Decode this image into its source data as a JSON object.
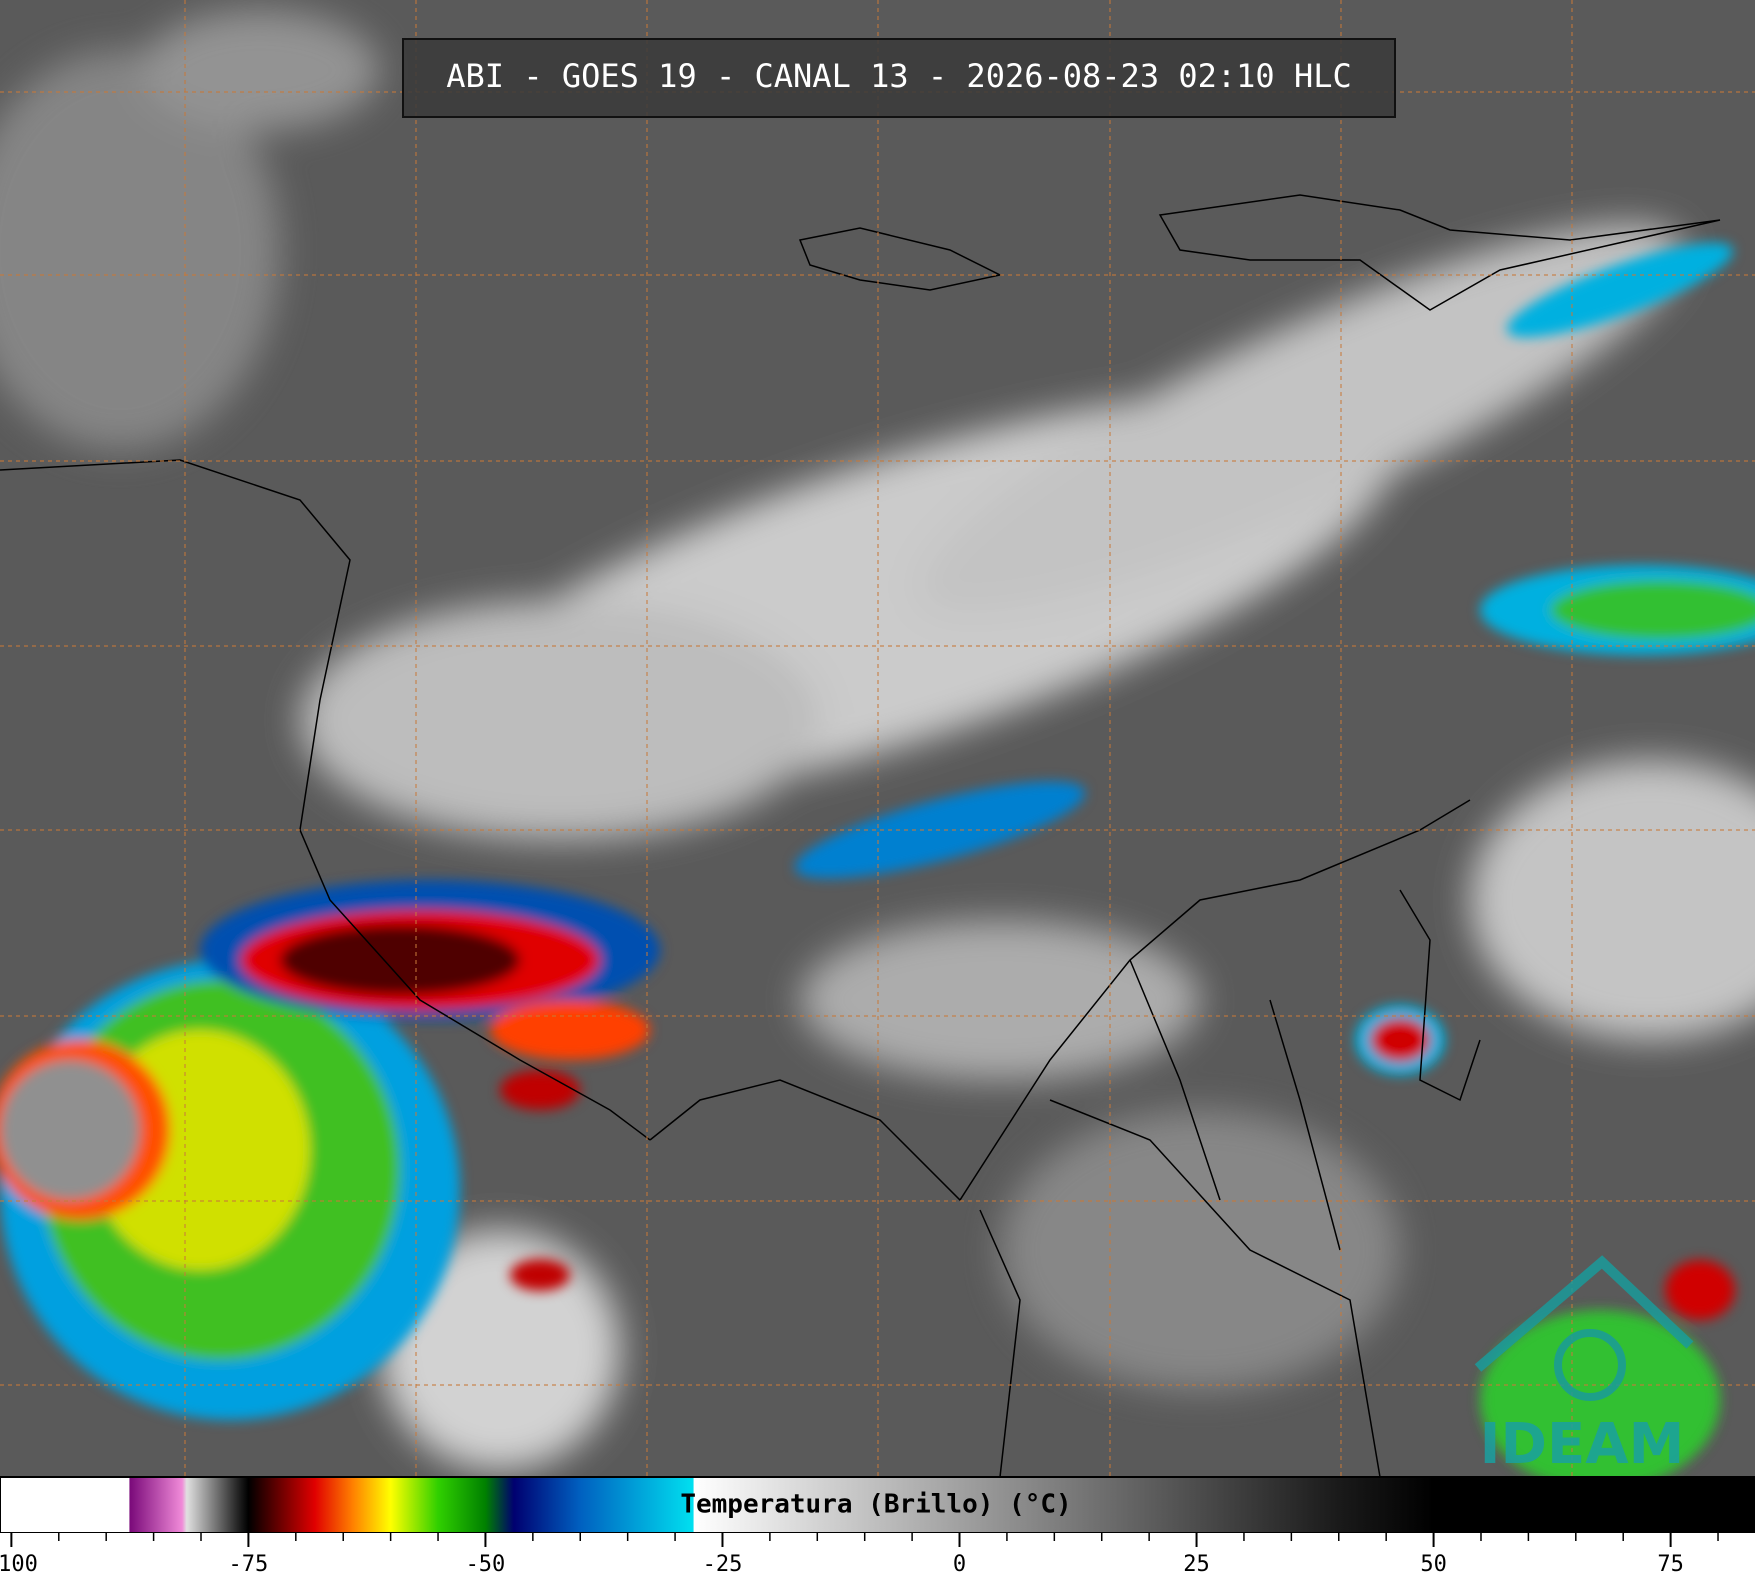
{
  "header": {
    "title": "ABI - GOES 19 - CANAL 13 - 2026-08-23 02:10 HLC"
  },
  "logo": {
    "text": "IDEAM"
  },
  "chart_data": {
    "type": "colorbar",
    "label": "Temperatura (Brillo) (°C)",
    "xlim": [
      -101.2,
      83.9
    ],
    "xticks": [
      -100,
      -75,
      -50,
      -25,
      0,
      25,
      50,
      75
    ],
    "minor_ticks": [
      -95,
      -90,
      -85,
      -80,
      -70,
      -65,
      -60,
      -55,
      -45,
      -40,
      -35,
      -30,
      -20,
      -15,
      -10,
      -5,
      5,
      10,
      15,
      20,
      30,
      35,
      40,
      45,
      55,
      60,
      65,
      70,
      80
    ],
    "colormap": [
      {
        "value": -101.2,
        "color": "#ffffff"
      },
      {
        "value": -87.6,
        "color": "#ffffff"
      },
      {
        "value": -87.5,
        "color": "#7a0a7a"
      },
      {
        "value": -82,
        "color": "#f08ad8"
      },
      {
        "value": -81.5,
        "color": "#e0e0e0"
      },
      {
        "value": -76,
        "color": "#202020"
      },
      {
        "value": -75,
        "color": "#000000"
      },
      {
        "value": -72,
        "color": "#600000"
      },
      {
        "value": -68,
        "color": "#e00000"
      },
      {
        "value": -64,
        "color": "#ff8000"
      },
      {
        "value": -60,
        "color": "#ffff00"
      },
      {
        "value": -55,
        "color": "#30d000"
      },
      {
        "value": -50,
        "color": "#008000"
      },
      {
        "value": -47,
        "color": "#000070"
      },
      {
        "value": -40,
        "color": "#0060c0"
      },
      {
        "value": -28.1,
        "color": "#00e0f0"
      },
      {
        "value": -28,
        "color": "#ffffff"
      },
      {
        "value": 40,
        "color": "#1a1a1a"
      },
      {
        "value": 50,
        "color": "#000000"
      },
      {
        "value": 83.9,
        "color": "#000000"
      }
    ]
  }
}
